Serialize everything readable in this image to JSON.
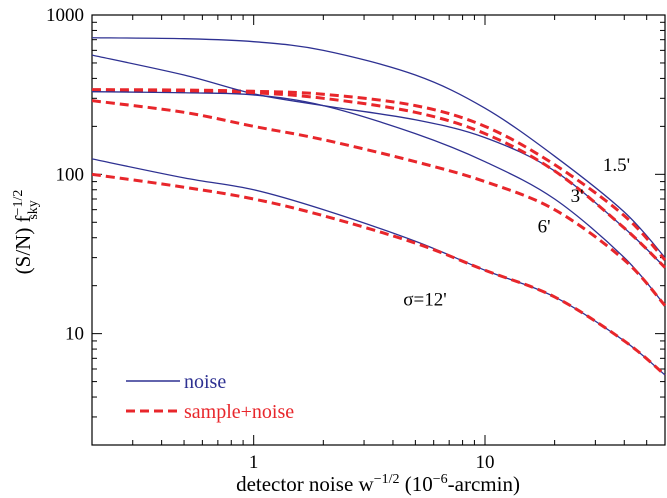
{
  "chart_data": {
    "type": "line",
    "xlabel": "detector noise w",
    "xlabel_exp": "−1/2",
    "xlabel_units": " (10",
    "xlabel_units_exp": "−6",
    "xlabel_units_end": "-arcmin)",
    "ylabel": "(S/N) f",
    "ylabel_exp": "−1/2",
    "ylabel_sub": "sky",
    "xscale": "log",
    "yscale": "log",
    "xlim": [
      0.2,
      60
    ],
    "ylim": [
      2,
      1000
    ],
    "x_ticks": [
      1,
      10
    ],
    "x_tick_labels": [
      "1",
      "10"
    ],
    "y_ticks": [
      10,
      100,
      1000
    ],
    "y_tick_labels": [
      "10",
      "100",
      "1000"
    ],
    "grid": false,
    "legend": {
      "position": "bottom-left",
      "entries": [
        {
          "label": "noise",
          "color": "#2e3192",
          "dash": "solid"
        },
        {
          "label": "sample+noise",
          "color": "#e8262b",
          "dash": "dashed"
        }
      ]
    },
    "annotations": [
      {
        "text": "1.5'",
        "x": 37,
        "y": 105
      },
      {
        "text": "3'",
        "x": 25,
        "y": 67
      },
      {
        "text": "6'",
        "x": 18,
        "y": 43
      },
      {
        "text": "σ=12'",
        "x": 5.5,
        "y": 15
      }
    ],
    "series": [
      {
        "name": "noise",
        "color": "#2e3192",
        "dash": "solid",
        "group": "1.5'",
        "x": [
          0.2,
          0.5,
          1,
          2,
          5,
          10,
          20,
          40,
          60
        ],
        "y": [
          720,
          710,
          680,
          600,
          420,
          260,
          130,
          58,
          30
        ]
      },
      {
        "name": "sample+noise",
        "color": "#e8262b",
        "dash": "dashed",
        "group": "1.5'",
        "x": [
          0.2,
          0.5,
          1,
          2,
          5,
          10,
          20,
          40,
          60
        ],
        "y": [
          340,
          338,
          332,
          318,
          270,
          200,
          115,
          55,
          29
        ]
      },
      {
        "name": "noise",
        "color": "#2e3192",
        "dash": "solid",
        "group": "3'",
        "x": [
          0.2,
          0.5,
          1,
          2,
          5,
          10,
          20,
          40,
          60
        ],
        "y": [
          560,
          420,
          320,
          270,
          220,
          170,
          105,
          46,
          26
        ]
      },
      {
        "name": "sample+noise",
        "color": "#e8262b",
        "dash": "dashed",
        "group": "3'",
        "x": [
          0.2,
          0.5,
          1,
          2,
          5,
          10,
          20,
          40,
          60
        ],
        "y": [
          335,
          330,
          325,
          300,
          245,
          180,
          105,
          46,
          26
        ]
      },
      {
        "name": "noise",
        "color": "#2e3192",
        "dash": "solid",
        "group": "6'",
        "x": [
          0.2,
          0.5,
          1,
          2,
          5,
          10,
          20,
          40,
          60
        ],
        "y": [
          330,
          325,
          315,
          270,
          180,
          120,
          70,
          30,
          15
        ]
      },
      {
        "name": "sample+noise",
        "color": "#e8262b",
        "dash": "dashed",
        "group": "6'",
        "x": [
          0.2,
          0.5,
          1,
          2,
          5,
          10,
          20,
          40,
          60
        ],
        "y": [
          290,
          245,
          200,
          165,
          120,
          90,
          60,
          29,
          15
        ]
      },
      {
        "name": "noise",
        "color": "#2e3192",
        "dash": "solid",
        "group": "12'",
        "x": [
          0.2,
          0.5,
          1,
          2,
          5,
          10,
          20,
          40,
          60
        ],
        "y": [
          125,
          95,
          80,
          60,
          38,
          25,
          17,
          9,
          5.5
        ]
      },
      {
        "name": "sample+noise",
        "color": "#e8262b",
        "dash": "dashed",
        "group": "12'",
        "x": [
          0.2,
          0.5,
          1,
          2,
          5,
          10,
          20,
          40,
          60
        ],
        "y": [
          100,
          83,
          70,
          55,
          37,
          25,
          17,
          9,
          5.5
        ]
      }
    ]
  }
}
